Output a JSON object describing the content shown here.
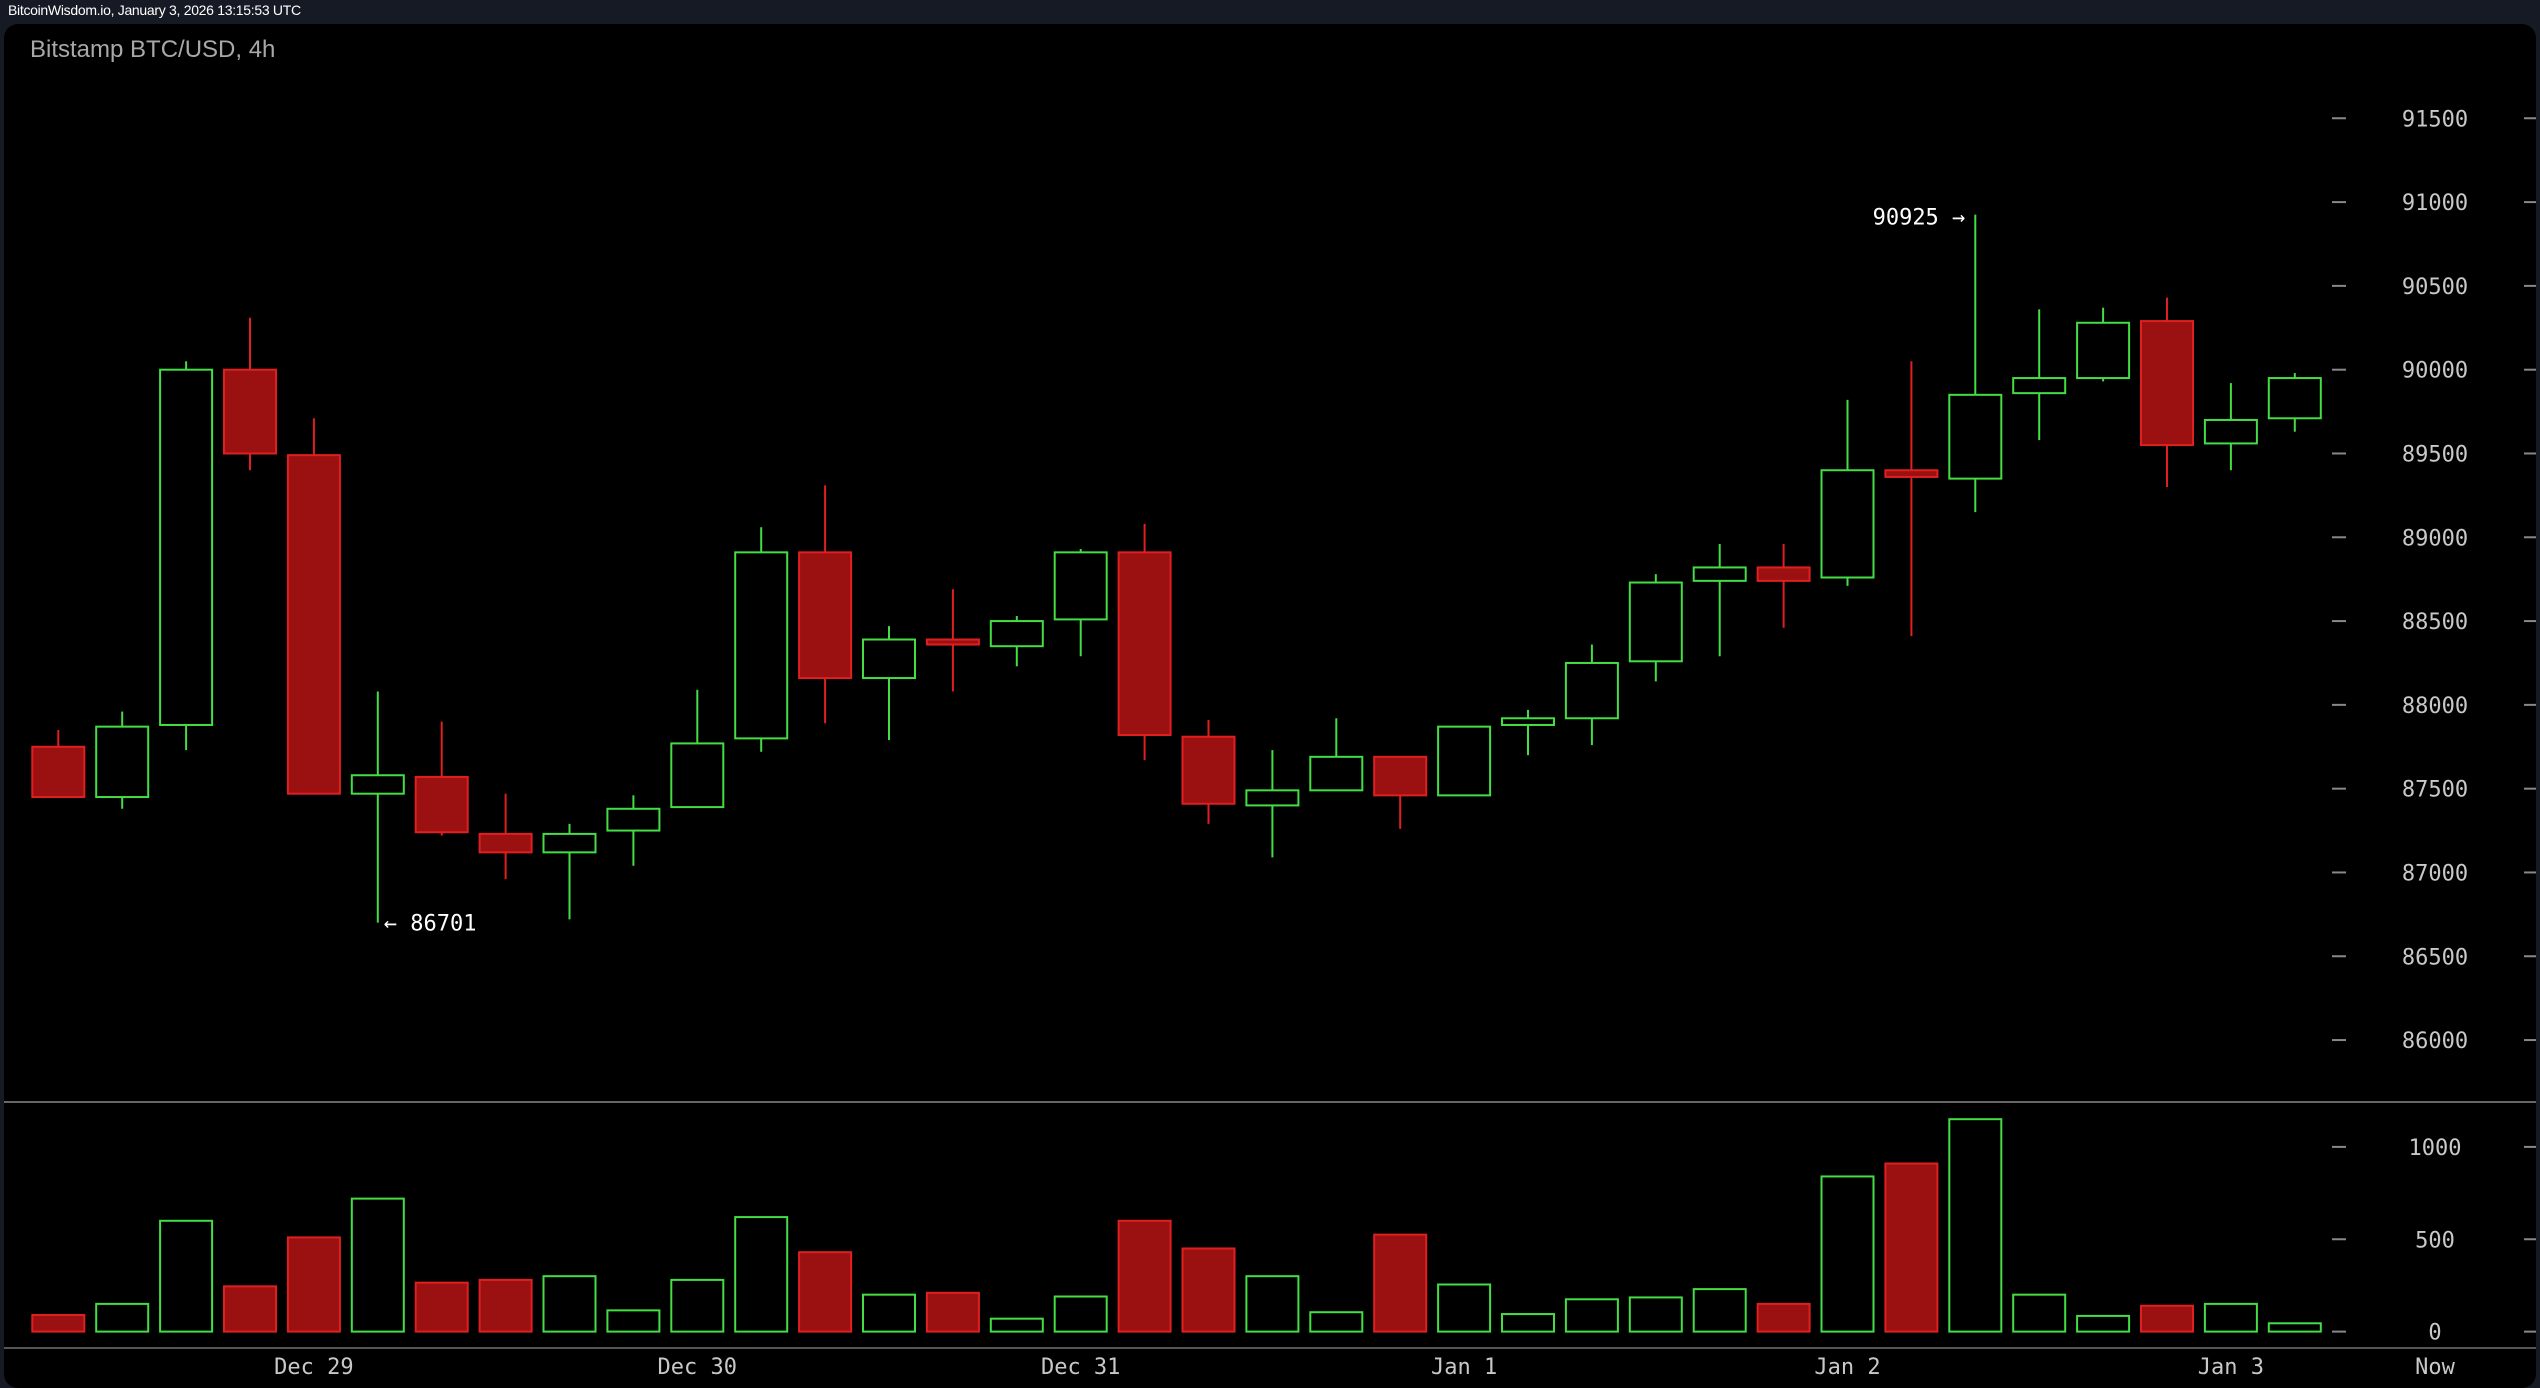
{
  "topbar": {
    "text": "BitcoinWisdom.io, January 3, 2026 13:15:53 UTC"
  },
  "chart_data": {
    "type": "candlestick",
    "title": "Bitstamp BTC/USD, 4h",
    "colors": {
      "up": "#44dd44",
      "down": "#9b1010",
      "down_edge": "#e02020",
      "background": "#000000",
      "axis_text": "#c8c8c8"
    },
    "price_ticks": [
      86000,
      86500,
      87000,
      87500,
      88000,
      88500,
      89000,
      89500,
      90000,
      90500,
      91000,
      91500
    ],
    "volume_ticks": [
      0,
      500,
      1000
    ],
    "x_labels": [
      {
        "index": 4,
        "label": "Dec 29"
      },
      {
        "index": 10,
        "label": "Dec 30"
      },
      {
        "index": 16,
        "label": "Dec 31"
      },
      {
        "index": 22,
        "label": "Jan 1"
      },
      {
        "index": 28,
        "label": "Jan 2"
      },
      {
        "index": 34,
        "label": "Jan 3"
      }
    ],
    "now_label": "Now",
    "annotations": {
      "high": {
        "index": 30,
        "text": "90925 →",
        "value": 90925
      },
      "low": {
        "index": 5,
        "text": "← 86701",
        "value": 86701
      }
    },
    "candles": [
      [
        87750,
        87850,
        87450,
        87450,
        90
      ],
      [
        87450,
        87960,
        87380,
        87870,
        150
      ],
      [
        87880,
        90050,
        87730,
        90000,
        600
      ],
      [
        90000,
        90310,
        89400,
        89500,
        245
      ],
      [
        89490,
        89710,
        87470,
        87470,
        510
      ],
      [
        87470,
        88080,
        86701,
        87580,
        720
      ],
      [
        87570,
        87900,
        87220,
        87240,
        265
      ],
      [
        87230,
        87470,
        86960,
        87120,
        280
      ],
      [
        87120,
        87290,
        86720,
        87230,
        300
      ],
      [
        87250,
        87460,
        87040,
        87380,
        115
      ],
      [
        87390,
        88090,
        87390,
        87770,
        280
      ],
      [
        87800,
        89060,
        87720,
        88910,
        620
      ],
      [
        88910,
        89310,
        87890,
        88160,
        430
      ],
      [
        88160,
        88470,
        87790,
        88390,
        200
      ],
      [
        88390,
        88690,
        88080,
        88360,
        210
      ],
      [
        88350,
        88530,
        88230,
        88500,
        70
      ],
      [
        88510,
        88930,
        88290,
        88910,
        190
      ],
      [
        88910,
        89080,
        87670,
        87820,
        600
      ],
      [
        87810,
        87910,
        87290,
        87410,
        450
      ],
      [
        87400,
        87730,
        87090,
        87490,
        300
      ],
      [
        87490,
        87920,
        87490,
        87690,
        105
      ],
      [
        87690,
        87690,
        87260,
        87460,
        525
      ],
      [
        87460,
        87870,
        87460,
        87870,
        255
      ],
      [
        87880,
        87970,
        87700,
        87920,
        95
      ],
      [
        87920,
        88360,
        87760,
        88250,
        175
      ],
      [
        88260,
        88780,
        88140,
        88730,
        185
      ],
      [
        88740,
        88960,
        88290,
        88820,
        230
      ],
      [
        88820,
        88960,
        88460,
        88740,
        150
      ],
      [
        88760,
        89820,
        88710,
        89400,
        840
      ],
      [
        89400,
        90050,
        88410,
        89360,
        910
      ],
      [
        89350,
        90925,
        89150,
        89850,
        1150
      ],
      [
        89860,
        90360,
        89580,
        89950,
        200
      ],
      [
        89950,
        90370,
        89930,
        90280,
        85
      ],
      [
        90290,
        90430,
        89300,
        89550,
        140
      ],
      [
        89560,
        89920,
        89400,
        89700,
        150
      ],
      [
        89710,
        89980,
        89630,
        89950,
        45
      ]
    ],
    "candle_fields": [
      "open",
      "high",
      "low",
      "close",
      "volume"
    ]
  }
}
